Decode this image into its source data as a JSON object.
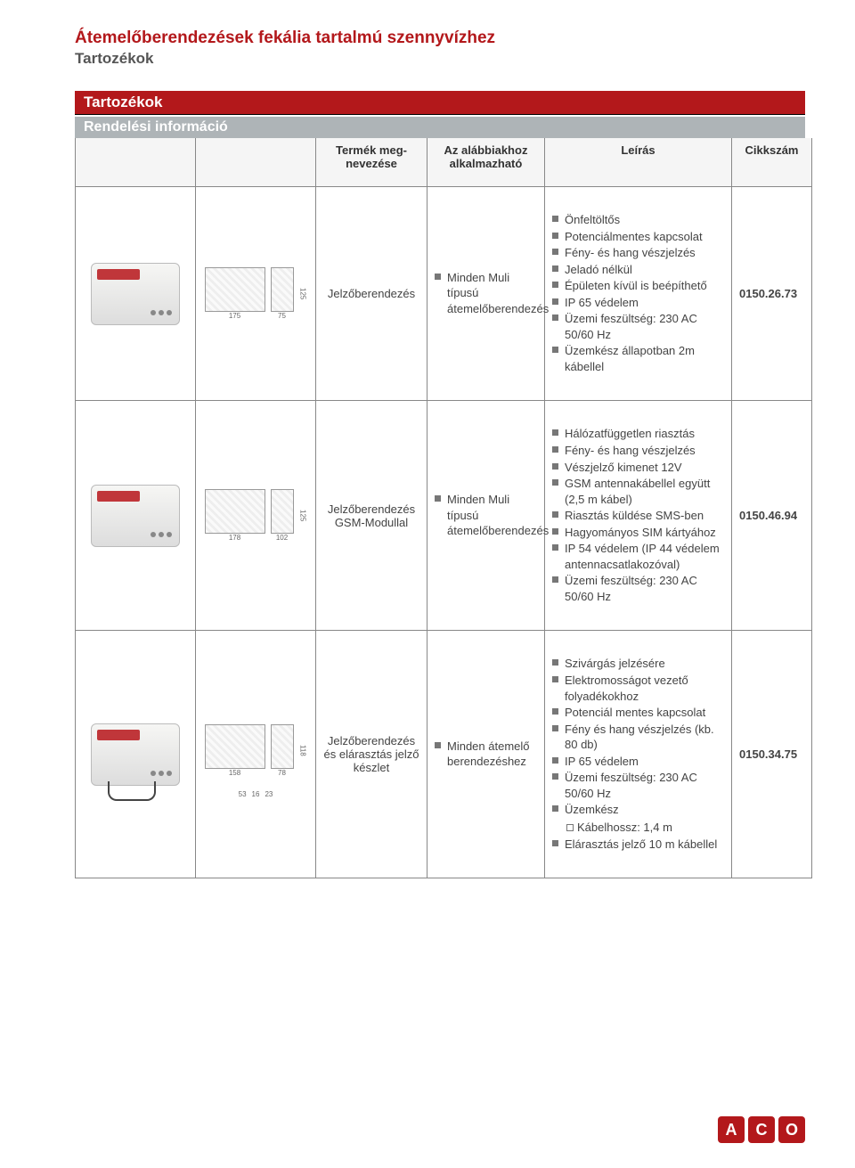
{
  "header": {
    "title": "Átemelőberendezések fekália tartalmú szennyvízhez",
    "subtitle": "Tartozékok"
  },
  "section_bar": "Tartozékok",
  "subsection_bar": "Rendelési információ",
  "columns": {
    "name_l1": "Termék meg-",
    "name_l2": "nevezése",
    "apply_l1": "Az alábbiakhoz",
    "apply_l2": "alkalmazható",
    "desc": "Leírás",
    "code": "Cikkszám"
  },
  "rows": [
    {
      "dim": {
        "w1": "175",
        "w2": "75",
        "h": "125"
      },
      "name": "Jelzőberendezés",
      "apply": "Minden Muli típusú átemelőberendezés",
      "bullets": [
        "Önfeltöltős",
        "Potenciálmentes kapcsolat",
        "Fény- és hang vészjelzés",
        "Jeladó nélkül",
        "Épületen kívül is beépíthető",
        "IP 65 védelem",
        "Üzemi feszültség: 230 AC 50/60 Hz",
        "Üzemkész állapotban 2m kábellel"
      ],
      "code": "0150.26.73"
    },
    {
      "dim": {
        "w1": "178",
        "w2": "102",
        "h": "125"
      },
      "name": "Jelzőberendezés GSM-Modullal",
      "apply": "Minden Muli típusú átemelőberendezés",
      "bullets": [
        "Hálózatfüggetlen riasztás",
        "Fény- és hang vészjelzés",
        "Vészjelző kimenet 12V",
        "GSM antennakábellel együtt (2,5 m kábel)",
        "Riasztás küldése SMS-ben",
        "Hagyományos SIM kártyához",
        "IP 54 védelem (IP 44 védelem antennacsatlakozóval)",
        "Üzemi feszültség: 230 AC 50/60 Hz"
      ],
      "code": "0150.46.94"
    },
    {
      "dim": {
        "w1": "158",
        "w2": "78",
        "h": "118",
        "extra": [
          "53",
          "16",
          "23"
        ]
      },
      "name": "Jelzőberendezés és elárasztás jelző készlet",
      "apply": "Minden átemelő berendezéshez",
      "bullets": [
        "Szivárgás jelzésére",
        "Elektromosságot vezető folyadékokhoz",
        "Potenciál mentes kapcsolat",
        "Fény és hang vészjelzés (kb. 80 db)",
        "IP 65 védelem",
        "Üzemi feszültség: 230 AC 50/60 Hz",
        {
          "text": "Üzemkész",
          "sub": [
            "Kábelhossz: 1,4 m"
          ]
        },
        "Elárasztás jelző 10 m kábellel"
      ],
      "code": "0150.34.75"
    }
  ],
  "logo": {
    "a": "A",
    "c": "C",
    "o": "O"
  },
  "colors": {
    "brand_red": "#b3181b",
    "grey_bar": "#aeb4b7",
    "text": "#444",
    "bullet": "#777"
  }
}
